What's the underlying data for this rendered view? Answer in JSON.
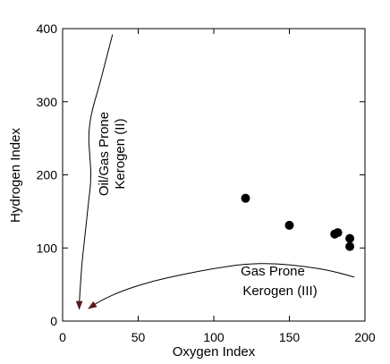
{
  "chart_data": {
    "type": "scatter",
    "xlabel": "Oxygen Index",
    "ylabel": "Hydrogen Index",
    "xlim": [
      0,
      200
    ],
    "ylim": [
      0,
      400
    ],
    "x_ticks": [
      0,
      50,
      100,
      150,
      200
    ],
    "y_ticks": [
      0,
      100,
      200,
      300,
      400
    ],
    "x_tick_labels": [
      "0",
      "50",
      "100",
      "150",
      "200"
    ],
    "y_tick_labels": [
      "0",
      "100",
      "200",
      "300",
      "400"
    ],
    "grid": false,
    "points": [
      {
        "x": 121,
        "y": 168
      },
      {
        "x": 150,
        "y": 131
      },
      {
        "x": 180,
        "y": 119
      },
      {
        "x": 182,
        "y": 121
      },
      {
        "x": 190,
        "y": 113
      },
      {
        "x": 190,
        "y": 102
      }
    ],
    "annotations": [
      {
        "id": "kerogen-ii",
        "lines": [
          "Oil/Gas Prone",
          "Kerogen (II)"
        ]
      },
      {
        "id": "kerogen-iii",
        "lines": [
          "Gas Prone",
          "Kerogen (III)"
        ]
      }
    ],
    "curves": [
      {
        "id": "type-ii-trend",
        "points": [
          [
            33,
            392
          ],
          [
            29,
            360
          ],
          [
            24,
            320
          ],
          [
            19,
            285
          ],
          [
            17,
            255
          ],
          [
            18,
            225
          ],
          [
            19,
            195
          ],
          [
            17,
            160
          ],
          [
            15,
            120
          ],
          [
            13,
            85
          ],
          [
            12,
            55
          ],
          [
            11,
            25
          ],
          [
            11,
            16
          ]
        ],
        "arrow_end": true
      },
      {
        "id": "type-iii-trend",
        "points": [
          [
            193,
            60
          ],
          [
            180,
            68
          ],
          [
            160,
            75
          ],
          [
            140,
            79
          ],
          [
            120,
            78
          ],
          [
            100,
            72
          ],
          [
            80,
            64
          ],
          [
            60,
            55
          ],
          [
            40,
            42
          ],
          [
            25,
            28
          ],
          [
            17,
            17
          ]
        ],
        "arrow_end": true
      }
    ],
    "colors": {
      "point": "#000000",
      "axis": "#000000",
      "arrowhead": "#5a1a1a"
    }
  }
}
